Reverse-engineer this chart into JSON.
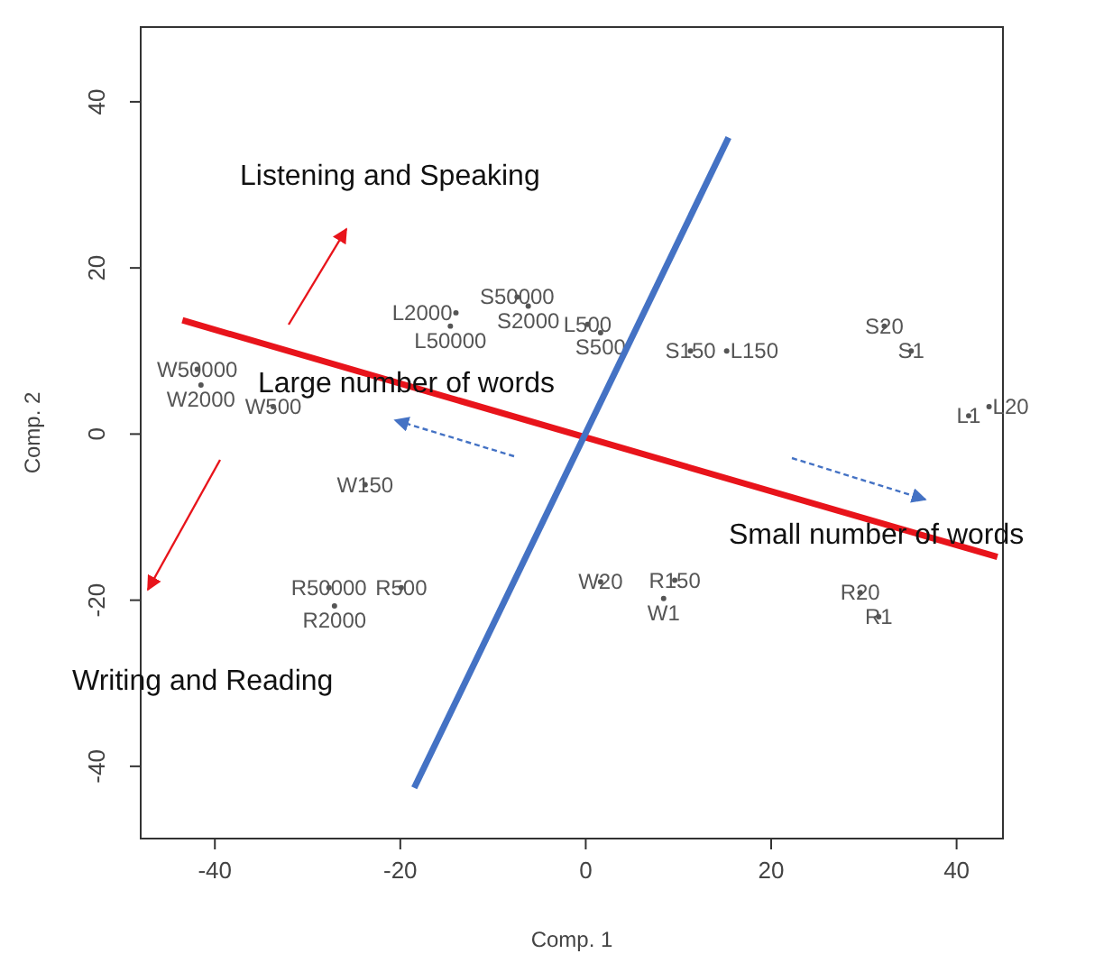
{
  "chart_data": {
    "type": "scatter",
    "xlabel": "Comp. 1",
    "ylabel": "Comp. 2",
    "xlim": [
      -48,
      45
    ],
    "ylim": [
      -48.7,
      49
    ],
    "xticks": [
      -40,
      -20,
      0,
      20,
      40
    ],
    "yticks": [
      -40,
      -20,
      0,
      20,
      40
    ],
    "grid": false,
    "series": [
      {
        "color": "#555555",
        "marker": "circle",
        "x": [
          -7.4,
          -6.2,
          -14.0,
          -14.6,
          0.2,
          1.6,
          11.3,
          15.2,
          32.2,
          35.1,
          41.3,
          43.5,
          -41.9,
          -41.5,
          -33.7,
          -23.8,
          -27.7,
          -19.9,
          -27.1,
          1.6,
          9.6,
          8.4,
          29.6,
          31.6
        ],
        "values": [
          16.5,
          15.4,
          14.6,
          13.0,
          13.2,
          12.2,
          10,
          10,
          13,
          10,
          2.2,
          3.3,
          7.8,
          5.9,
          3.3,
          -6.1,
          -18.5,
          -18.5,
          -20.7,
          -17.8,
          -17.6,
          -19.8,
          -19.1,
          -22
        ],
        "value_labels": [
          "S50000",
          "S2000",
          "L2000",
          "L50000",
          "L500",
          "S500",
          "S150",
          "L150",
          "S20",
          "S1",
          "L1",
          "L20",
          "W50000",
          "W2000",
          "W500",
          "W150",
          "R50000",
          "R500",
          "R2000",
          "W20",
          "R150",
          "W1",
          "R20",
          "R1"
        ]
      },
      {
        "type": "line",
        "marker": "none",
        "color": "#e8141b",
        "x": [
          -43.5,
          44.4
        ],
        "values": [
          13.7,
          -14.8
        ]
      },
      {
        "type": "line",
        "marker": "none",
        "color": "#4472c4",
        "x": [
          -18.5,
          15.4
        ],
        "values": [
          -42.6,
          35.7
        ]
      }
    ],
    "annotations": [
      "Listening and Speaking",
      "Large number of words",
      "Small number of words",
      "Writing and Reading"
    ]
  }
}
